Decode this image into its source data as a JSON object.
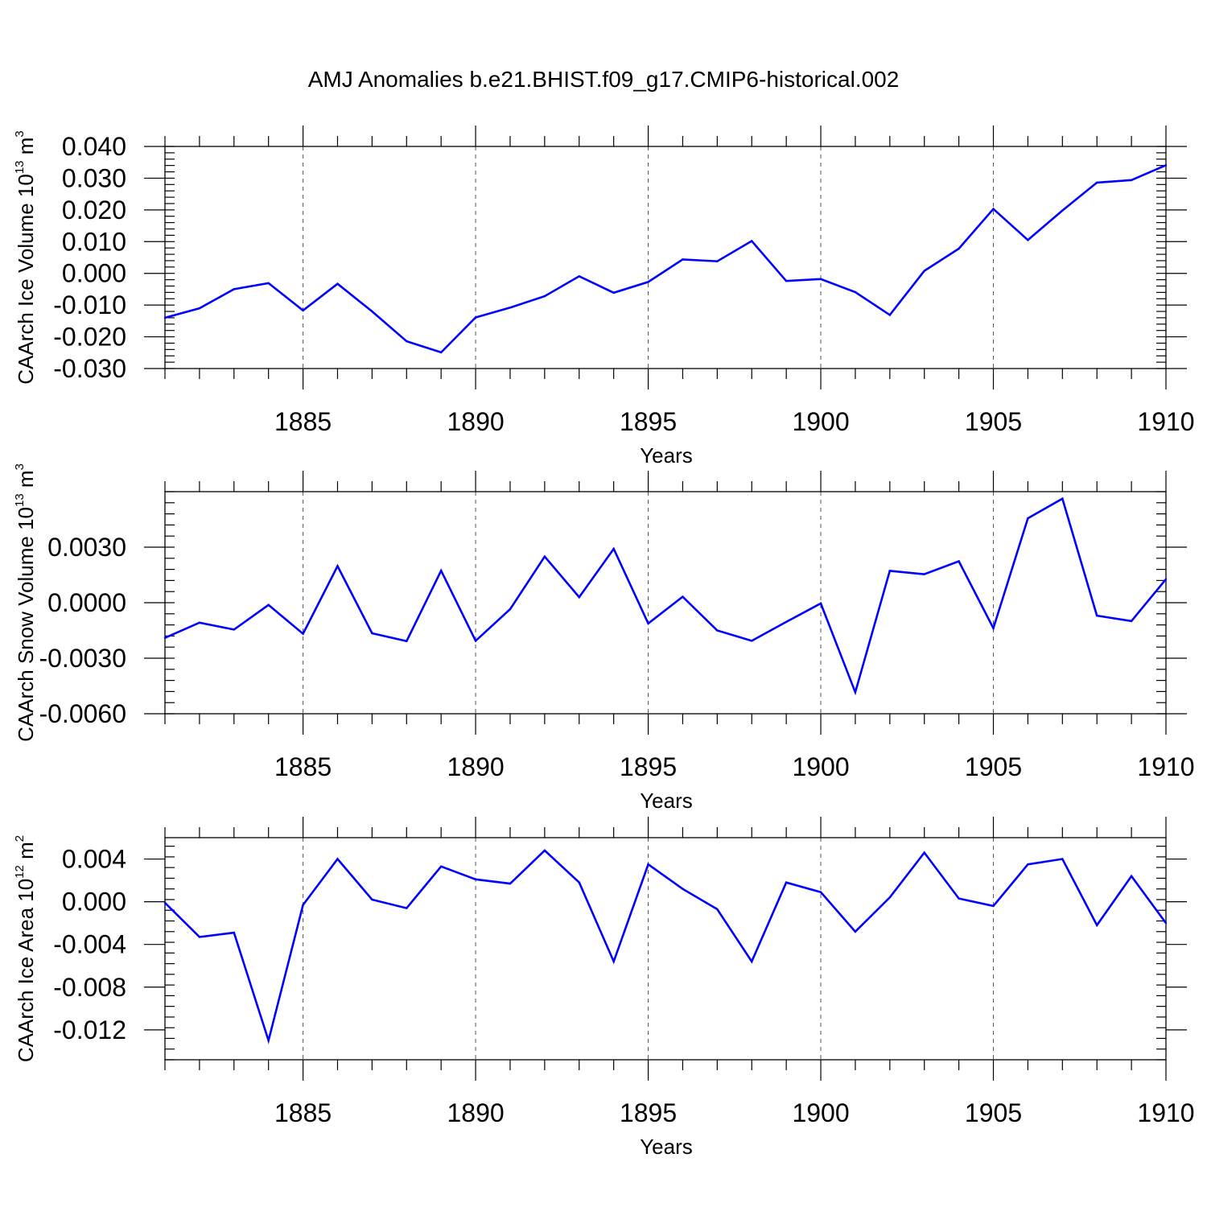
{
  "chart_data": {
    "title": "AMJ Anomalies b.e21.BHIST.f09_g17.CMIP6-historical.002",
    "type": "line",
    "panels": [
      {
        "type": "line",
        "ylabel": "CAArch Ice Volume 10",
        "ylabel_exp": "13",
        "ylabel_unit": " m",
        "ylabel_unit_exp": "3",
        "xlabel": "Years",
        "xlim": [
          1881,
          1910
        ],
        "ylim": [
          -0.03,
          0.04
        ],
        "yticks": [
          -0.03,
          -0.02,
          -0.01,
          0.0,
          0.01,
          0.02,
          0.03,
          0.04
        ],
        "ytick_labels": [
          "-0.030",
          "-0.020",
          "-0.010",
          "0.000",
          "0.010",
          "0.020",
          "0.030",
          "0.040"
        ],
        "yminor": 0.002,
        "xticks": [
          1885,
          1890,
          1895,
          1900,
          1905,
          1910
        ],
        "xtick_labels": [
          "1885",
          "1890",
          "1895",
          "1900",
          "1905",
          "1910"
        ],
        "x": [
          1881,
          1882,
          1883,
          1884,
          1885,
          1886,
          1887,
          1888,
          1889,
          1890,
          1891,
          1892,
          1893,
          1894,
          1895,
          1896,
          1897,
          1898,
          1899,
          1900,
          1901,
          1902,
          1903,
          1904,
          1905,
          1906,
          1907,
          1908,
          1909,
          1910
        ],
        "values": [
          -0.014,
          -0.011,
          -0.005,
          -0.0031,
          -0.0117,
          -0.0033,
          -0.012,
          -0.0214,
          -0.0249,
          -0.0139,
          -0.0108,
          -0.0072,
          -0.0009,
          -0.0061,
          -0.0027,
          0.0044,
          0.0038,
          0.0102,
          -0.0024,
          -0.0018,
          -0.0059,
          -0.0131,
          0.0008,
          0.0078,
          0.0203,
          0.0105,
          0.0198,
          0.0286,
          0.0294,
          0.0341
        ]
      },
      {
        "type": "line",
        "ylabel": "CAArch Snow Volume 10",
        "ylabel_exp": "13",
        "ylabel_unit": " m",
        "ylabel_unit_exp": "3",
        "xlabel": "Years",
        "xlim": [
          1881,
          1910
        ],
        "ylim": [
          -0.006,
          0.006
        ],
        "yticks": [
          -0.006,
          -0.003,
          0.0,
          0.003
        ],
        "ytick_labels": [
          "-0.0060",
          "-0.0030",
          "0.0000",
          "0.0030"
        ],
        "yminor": 0.0006,
        "xticks": [
          1885,
          1890,
          1895,
          1900,
          1905,
          1910
        ],
        "xtick_labels": [
          "1885",
          "1890",
          "1895",
          "1900",
          "1905",
          "1910"
        ],
        "x": [
          1881,
          1882,
          1883,
          1884,
          1885,
          1886,
          1887,
          1888,
          1889,
          1890,
          1891,
          1892,
          1893,
          1894,
          1895,
          1896,
          1897,
          1898,
          1899,
          1900,
          1901,
          1902,
          1903,
          1904,
          1905,
          1906,
          1907,
          1908,
          1909,
          1910
        ],
        "values": [
          -0.0019,
          -0.00108,
          -0.00145,
          -0.00012,
          -0.00168,
          0.00198,
          -0.00165,
          -0.00208,
          0.00173,
          -0.00206,
          -0.00035,
          0.00249,
          0.0003,
          0.00291,
          -0.00112,
          0.00032,
          -0.0015,
          -0.00206,
          -0.00104,
          -4e-05,
          -0.00484,
          0.00172,
          0.00154,
          0.00224,
          -0.00138,
          0.00456,
          0.00562,
          -0.0007,
          -0.00099,
          0.00127
        ]
      },
      {
        "type": "line",
        "ylabel": "CAArch Ice Area 10",
        "ylabel_exp": "12",
        "ylabel_unit": " m",
        "ylabel_unit_exp": "2",
        "xlabel": "Years",
        "xlim": [
          1881,
          1910
        ],
        "ylim": [
          -0.0148,
          0.006
        ],
        "yticks": [
          -0.012,
          -0.008,
          -0.004,
          0.0,
          0.004
        ],
        "ytick_labels": [
          "-0.012",
          "-0.008",
          "-0.004",
          "0.000",
          "0.004"
        ],
        "yminor": 0.001,
        "xticks": [
          1885,
          1890,
          1895,
          1900,
          1905,
          1910
        ],
        "xtick_labels": [
          "1885",
          "1890",
          "1895",
          "1900",
          "1905",
          "1910"
        ],
        "x": [
          1881,
          1882,
          1883,
          1884,
          1885,
          1886,
          1887,
          1888,
          1889,
          1890,
          1891,
          1892,
          1893,
          1894,
          1895,
          1896,
          1897,
          1898,
          1899,
          1900,
          1901,
          1902,
          1903,
          1904,
          1905,
          1906,
          1907,
          1908,
          1909,
          1910
        ],
        "values": [
          -0.0001,
          -0.0033,
          -0.0029,
          -0.013,
          -0.0003,
          0.004,
          0.0002,
          -0.0006,
          0.0033,
          0.0021,
          0.0017,
          0.0048,
          0.0018,
          -0.0056,
          0.0035,
          0.0012,
          -0.0007,
          -0.0056,
          0.0018,
          0.0009,
          -0.0028,
          0.0004,
          0.0046,
          0.0003,
          -0.0004,
          0.0035,
          0.004,
          -0.0022,
          0.0024,
          -0.002
        ]
      }
    ],
    "line_color": "#0000ff",
    "grid_color": "#555555"
  }
}
